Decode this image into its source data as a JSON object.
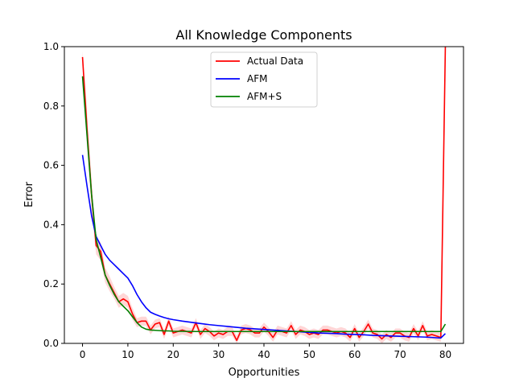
{
  "chart_data": {
    "type": "line",
    "title": "All Knowledge Components",
    "xlabel": "Opportunities",
    "ylabel": "Error",
    "xlim": [
      -4,
      84
    ],
    "ylim": [
      0,
      1.0
    ],
    "x_ticks": [
      0,
      10,
      20,
      30,
      40,
      50,
      60,
      70,
      80
    ],
    "y_ticks": [
      0.0,
      0.2,
      0.4,
      0.6,
      0.8,
      1.0
    ],
    "grid": false,
    "legend_position": "top-center",
    "series": [
      {
        "name": "Actual Data",
        "color": "#ff0000",
        "band_color": "#ffcccc",
        "x": [
          0,
          1,
          2,
          3,
          4,
          5,
          6,
          7,
          8,
          9,
          10,
          11,
          12,
          13,
          14,
          15,
          16,
          17,
          18,
          19,
          20,
          21,
          22,
          23,
          24,
          25,
          26,
          27,
          28,
          29,
          30,
          31,
          32,
          33,
          34,
          35,
          36,
          37,
          38,
          39,
          40,
          41,
          42,
          43,
          44,
          45,
          46,
          47,
          48,
          49,
          50,
          51,
          52,
          53,
          54,
          55,
          56,
          57,
          58,
          59,
          60,
          61,
          62,
          63,
          64,
          65,
          66,
          67,
          68,
          69,
          70,
          71,
          72,
          73,
          74,
          75,
          76,
          77,
          78,
          79,
          80
        ],
        "y": [
          0.965,
          0.72,
          0.5,
          0.33,
          0.31,
          0.23,
          0.2,
          0.17,
          0.14,
          0.15,
          0.14,
          0.1,
          0.07,
          0.075,
          0.075,
          0.045,
          0.065,
          0.07,
          0.03,
          0.075,
          0.035,
          0.04,
          0.045,
          0.04,
          0.035,
          0.07,
          0.03,
          0.05,
          0.04,
          0.025,
          0.035,
          0.03,
          0.04,
          0.04,
          0.01,
          0.045,
          0.05,
          0.045,
          0.035,
          0.035,
          0.055,
          0.04,
          0.02,
          0.045,
          0.04,
          0.035,
          0.06,
          0.03,
          0.045,
          0.04,
          0.03,
          0.035,
          0.03,
          0.045,
          0.045,
          0.04,
          0.035,
          0.04,
          0.035,
          0.02,
          0.05,
          0.02,
          0.04,
          0.065,
          0.035,
          0.03,
          0.015,
          0.03,
          0.02,
          0.035,
          0.035,
          0.025,
          0.02,
          0.05,
          0.025,
          0.06,
          0.025,
          0.03,
          0.025,
          0.02,
          1.0
        ],
        "band": [
          0.02,
          0.06,
          0.05,
          0.03,
          0.03,
          0.025,
          0.025,
          0.02,
          0.02,
          0.02,
          0.02,
          0.02,
          0.015,
          0.015,
          0.015,
          0.015,
          0.015,
          0.015,
          0.015,
          0.015,
          0.015,
          0.015,
          0.015,
          0.015,
          0.015,
          0.015,
          0.015,
          0.015,
          0.015,
          0.015,
          0.015,
          0.015,
          0.015,
          0.015,
          0.015,
          0.015,
          0.015,
          0.015,
          0.015,
          0.015,
          0.015,
          0.015,
          0.015,
          0.015,
          0.015,
          0.015,
          0.015,
          0.015,
          0.015,
          0.015,
          0.015,
          0.015,
          0.015,
          0.015,
          0.015,
          0.015,
          0.015,
          0.015,
          0.015,
          0.015,
          0.015,
          0.015,
          0.015,
          0.015,
          0.015,
          0.015,
          0.015,
          0.015,
          0.015,
          0.015,
          0.015,
          0.015,
          0.015,
          0.015,
          0.015,
          0.015,
          0.015,
          0.015,
          0.015,
          0.015,
          0.0
        ]
      },
      {
        "name": "AFM",
        "color": "#0000ff",
        "x": [
          0,
          1,
          2,
          3,
          4,
          5,
          6,
          7,
          8,
          9,
          10,
          11,
          12,
          13,
          14,
          15,
          16,
          17,
          18,
          19,
          20,
          22,
          24,
          26,
          28,
          30,
          32,
          34,
          36,
          38,
          40,
          42,
          44,
          46,
          48,
          50,
          52,
          54,
          56,
          58,
          60,
          62,
          64,
          66,
          68,
          70,
          72,
          74,
          76,
          78,
          79,
          80
        ],
        "y": [
          0.635,
          0.53,
          0.43,
          0.36,
          0.33,
          0.3,
          0.28,
          0.265,
          0.25,
          0.235,
          0.22,
          0.195,
          0.165,
          0.14,
          0.12,
          0.105,
          0.098,
          0.092,
          0.087,
          0.083,
          0.08,
          0.075,
          0.071,
          0.067,
          0.063,
          0.06,
          0.057,
          0.054,
          0.051,
          0.049,
          0.047,
          0.045,
          0.043,
          0.041,
          0.039,
          0.037,
          0.035,
          0.034,
          0.033,
          0.031,
          0.03,
          0.029,
          0.027,
          0.026,
          0.025,
          0.024,
          0.023,
          0.022,
          0.021,
          0.019,
          0.018,
          0.033
        ]
      },
      {
        "name": "AFM+S",
        "color": "#008000",
        "x": [
          0,
          1,
          2,
          3,
          4,
          5,
          6,
          7,
          8,
          9,
          10,
          11,
          12,
          13,
          14,
          15,
          16,
          17,
          18,
          19,
          20,
          25,
          30,
          35,
          40,
          45,
          50,
          55,
          60,
          65,
          70,
          75,
          78,
          79,
          80
        ],
        "y": [
          0.9,
          0.7,
          0.5,
          0.35,
          0.29,
          0.23,
          0.195,
          0.165,
          0.14,
          0.125,
          0.11,
          0.09,
          0.07,
          0.055,
          0.048,
          0.045,
          0.044,
          0.043,
          0.042,
          0.042,
          0.041,
          0.04,
          0.04,
          0.04,
          0.04,
          0.04,
          0.04,
          0.04,
          0.04,
          0.04,
          0.04,
          0.04,
          0.04,
          0.04,
          0.065
        ]
      }
    ]
  }
}
